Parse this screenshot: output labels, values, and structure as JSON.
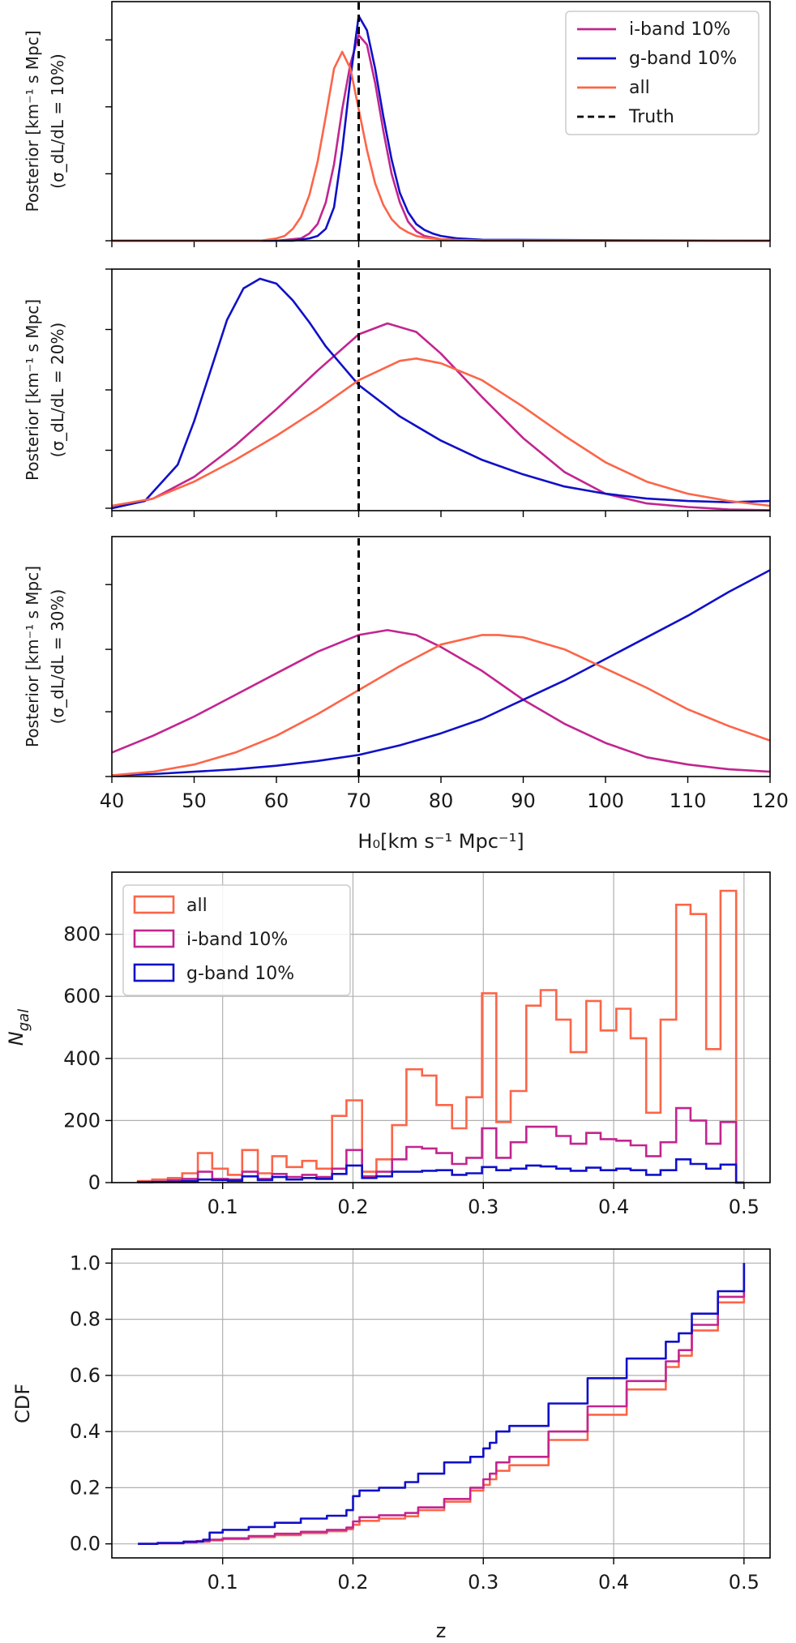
{
  "colors": {
    "all": "#fc6548",
    "iband": "#c2258f",
    "gband": "#1010c8",
    "truth": "#000000",
    "grid": "#b0b0b0"
  },
  "chart_data": [
    {
      "type": "line",
      "id": "post10",
      "ylabel_line1": "Posterior [km⁻¹ s Mpc]",
      "ylabel_line2": "(σ_dL/dL = 10%)",
      "xlim": [
        40,
        120
      ],
      "ylim": [
        0,
        1.0
      ],
      "truth": 70,
      "legend": [
        {
          "label": "i-band 10%",
          "key": "iband",
          "style": "solid"
        },
        {
          "label": "g-band 10%",
          "key": "gband",
          "style": "solid"
        },
        {
          "label": "all",
          "key": "all",
          "style": "solid"
        },
        {
          "label": "Truth",
          "key": "truth",
          "style": "dashed"
        }
      ],
      "series": [
        {
          "name": "i-band 10%",
          "key": "iband",
          "x": [
            40,
            60,
            63,
            64,
            65,
            66,
            67,
            68,
            69,
            70,
            71,
            72,
            73,
            74,
            75,
            76,
            77,
            78,
            80,
            85,
            120
          ],
          "y": [
            0,
            0,
            0.01,
            0.03,
            0.07,
            0.16,
            0.32,
            0.55,
            0.74,
            0.86,
            0.82,
            0.66,
            0.46,
            0.28,
            0.16,
            0.08,
            0.04,
            0.02,
            0.006,
            0,
            0
          ]
        },
        {
          "name": "g-band 10%",
          "key": "gband",
          "x": [
            40,
            62,
            64,
            65,
            66,
            67,
            68,
            69,
            70,
            71,
            72,
            73,
            74,
            75,
            76,
            77,
            78,
            79,
            80,
            82,
            85,
            120
          ],
          "y": [
            0,
            0,
            0.01,
            0.02,
            0.05,
            0.14,
            0.38,
            0.68,
            0.94,
            0.88,
            0.72,
            0.52,
            0.34,
            0.2,
            0.12,
            0.07,
            0.045,
            0.03,
            0.02,
            0.01,
            0.004,
            0
          ]
        },
        {
          "name": "all",
          "key": "all",
          "x": [
            40,
            58,
            60,
            61,
            62,
            63,
            64,
            65,
            66,
            67,
            68,
            69,
            70,
            71,
            72,
            73,
            74,
            75,
            76,
            77,
            78,
            80,
            82,
            85,
            120
          ],
          "y": [
            0,
            0,
            0.01,
            0.02,
            0.05,
            0.1,
            0.19,
            0.33,
            0.52,
            0.72,
            0.79,
            0.72,
            0.55,
            0.38,
            0.24,
            0.15,
            0.09,
            0.055,
            0.035,
            0.02,
            0.013,
            0.006,
            0.003,
            0.001,
            0
          ]
        },
        {
          "name": "Truth",
          "key": "truth",
          "x": [
            70,
            70
          ],
          "y": [
            0,
            1.05
          ]
        }
      ]
    },
    {
      "type": "line",
      "id": "post20",
      "ylabel_line1": "Posterior [km⁻¹ s Mpc]",
      "ylabel_line2": "(σ_dL/dL = 20%)",
      "xlim": [
        40,
        120
      ],
      "ylim": [
        0,
        1.0
      ],
      "truth": 70,
      "series": [
        {
          "name": "i-band 10%",
          "key": "iband",
          "x": [
            40,
            45,
            50,
            55,
            60,
            65,
            70,
            73.5,
            77,
            80,
            85,
            90,
            95,
            100,
            105,
            110,
            115,
            120
          ],
          "y": [
            0.01,
            0.05,
            0.14,
            0.27,
            0.42,
            0.58,
            0.73,
            0.775,
            0.74,
            0.65,
            0.47,
            0.3,
            0.16,
            0.07,
            0.03,
            0.015,
            0.005,
            0.002
          ]
        },
        {
          "name": "g-band 10%",
          "key": "gband",
          "x": [
            40,
            44,
            48,
            50,
            52,
            54,
            56,
            58,
            60,
            62,
            64,
            66,
            68,
            70,
            75,
            80,
            85,
            90,
            95,
            100,
            105,
            110,
            115,
            120
          ],
          "y": [
            0.01,
            0.04,
            0.19,
            0.37,
            0.58,
            0.79,
            0.92,
            0.96,
            0.94,
            0.87,
            0.78,
            0.68,
            0.6,
            0.52,
            0.39,
            0.29,
            0.21,
            0.15,
            0.1,
            0.07,
            0.05,
            0.04,
            0.035,
            0.04
          ]
        },
        {
          "name": "all",
          "key": "all",
          "x": [
            40,
            45,
            50,
            55,
            60,
            65,
            70,
            75,
            77,
            80,
            85,
            90,
            95,
            100,
            105,
            110,
            115,
            120
          ],
          "y": [
            0.02,
            0.05,
            0.12,
            0.21,
            0.31,
            0.42,
            0.54,
            0.62,
            0.63,
            0.61,
            0.54,
            0.43,
            0.31,
            0.2,
            0.12,
            0.07,
            0.04,
            0.02
          ]
        },
        {
          "name": "Truth",
          "key": "truth",
          "x": [
            70,
            70
          ],
          "y": [
            0,
            1.05
          ]
        }
      ]
    },
    {
      "type": "line",
      "id": "post30",
      "ylabel_line1": "Posterior [km⁻¹ s Mpc]",
      "ylabel_line2": "(σ_dL/dL = 30%)",
      "xlim": [
        40,
        120
      ],
      "ylim": [
        0,
        1.0
      ],
      "truth": 70,
      "xlabel": "H₀[km s⁻¹ Mpc⁻¹]",
      "xticks": [
        40,
        50,
        60,
        70,
        80,
        90,
        100,
        110,
        120
      ],
      "series": [
        {
          "name": "i-band 10%",
          "key": "iband",
          "x": [
            40,
            45,
            50,
            55,
            60,
            65,
            70,
            73.5,
            77,
            80,
            85,
            90,
            95,
            100,
            105,
            110,
            115,
            120
          ],
          "y": [
            0.1,
            0.17,
            0.25,
            0.34,
            0.43,
            0.52,
            0.59,
            0.61,
            0.59,
            0.54,
            0.44,
            0.32,
            0.22,
            0.14,
            0.08,
            0.05,
            0.03,
            0.02
          ]
        },
        {
          "name": "g-band 10%",
          "key": "gband",
          "x": [
            40,
            45,
            50,
            55,
            60,
            65,
            70,
            75,
            80,
            85,
            90,
            95,
            100,
            105,
            110,
            115,
            120
          ],
          "y": [
            0.005,
            0.01,
            0.02,
            0.03,
            0.045,
            0.065,
            0.09,
            0.13,
            0.18,
            0.24,
            0.32,
            0.4,
            0.49,
            0.58,
            0.67,
            0.77,
            0.86
          ]
        },
        {
          "name": "all",
          "key": "all",
          "x": [
            40,
            45,
            50,
            55,
            60,
            65,
            70,
            75,
            80,
            85,
            87,
            90,
            95,
            100,
            105,
            110,
            115,
            120
          ],
          "y": [
            0.005,
            0.02,
            0.05,
            0.1,
            0.17,
            0.26,
            0.36,
            0.46,
            0.55,
            0.59,
            0.59,
            0.58,
            0.53,
            0.45,
            0.37,
            0.28,
            0.21,
            0.15
          ]
        },
        {
          "name": "Truth",
          "key": "truth",
          "x": [
            70,
            70
          ],
          "y": [
            0,
            1.0
          ]
        }
      ]
    },
    {
      "type": "histogram",
      "id": "hist",
      "ylabel": "N_gal",
      "xlim": [
        0.015,
        0.52
      ],
      "ylim": [
        0,
        1000
      ],
      "yticks": [
        0,
        200,
        400,
        600,
        800
      ],
      "xticks": [
        0.1,
        0.2,
        0.3,
        0.4,
        0.5
      ],
      "legend": [
        {
          "label": "all",
          "key": "all"
        },
        {
          "label": "i-band 10%",
          "key": "iband"
        },
        {
          "label": "g-band 10%",
          "key": "gband"
        }
      ],
      "bin_edges": [
        0.035,
        0.046,
        0.058,
        0.069,
        0.081,
        0.092,
        0.104,
        0.115,
        0.127,
        0.138,
        0.149,
        0.161,
        0.172,
        0.184,
        0.195,
        0.207,
        0.218,
        0.23,
        0.241,
        0.253,
        0.264,
        0.276,
        0.287,
        0.299,
        0.31,
        0.321,
        0.333,
        0.344,
        0.356,
        0.367,
        0.379,
        0.39,
        0.402,
        0.413,
        0.425,
        0.436,
        0.448,
        0.459,
        0.471,
        0.482,
        0.494,
        0.5
      ],
      "series": [
        {
          "name": "all",
          "key": "all",
          "values": [
            5,
            10,
            15,
            30,
            95,
            45,
            25,
            105,
            30,
            85,
            50,
            70,
            45,
            215,
            265,
            35,
            75,
            185,
            365,
            345,
            250,
            175,
            275,
            610,
            195,
            295,
            570,
            620,
            525,
            420,
            585,
            490,
            560,
            465,
            225,
            525,
            895,
            865,
            430,
            940,
            0
          ]
        },
        {
          "name": "i-band 10%",
          "key": "iband",
          "values": [
            2,
            3,
            8,
            12,
            35,
            12,
            10,
            35,
            12,
            28,
            18,
            25,
            18,
            45,
            105,
            20,
            35,
            75,
            115,
            110,
            95,
            60,
            80,
            175,
            80,
            130,
            180,
            180,
            150,
            125,
            160,
            140,
            135,
            120,
            85,
            130,
            240,
            200,
            125,
            195,
            0
          ]
        },
        {
          "name": "g-band 10%",
          "key": "gband",
          "values": [
            1,
            2,
            3,
            5,
            10,
            8,
            6,
            20,
            8,
            18,
            10,
            15,
            12,
            28,
            55,
            15,
            20,
            35,
            35,
            38,
            40,
            25,
            30,
            50,
            40,
            45,
            55,
            52,
            45,
            38,
            48,
            40,
            45,
            40,
            25,
            40,
            75,
            60,
            45,
            58,
            0
          ]
        }
      ]
    },
    {
      "type": "line",
      "id": "cdf",
      "ylabel": "CDF",
      "xlabel": "z",
      "xlim": [
        0.015,
        0.52
      ],
      "ylim": [
        -0.05,
        1.05
      ],
      "yticks": [
        0.0,
        0.2,
        0.4,
        0.6,
        0.8,
        1.0
      ],
      "ytick_labels": [
        "0.0",
        "0.2",
        "0.4",
        "0.6",
        "0.8",
        "1.0"
      ],
      "xticks": [
        0.1,
        0.2,
        0.3,
        0.4,
        0.5
      ],
      "series": [
        {
          "name": "all",
          "key": "all",
          "x": [
            0.035,
            0.05,
            0.07,
            0.08,
            0.09,
            0.1,
            0.12,
            0.14,
            0.16,
            0.18,
            0.195,
            0.2,
            0.205,
            0.22,
            0.24,
            0.25,
            0.27,
            0.29,
            0.3,
            0.305,
            0.31,
            0.32,
            0.35,
            0.38,
            0.41,
            0.44,
            0.45,
            0.46,
            0.48,
            0.5
          ],
          "y": [
            0,
            0.002,
            0.005,
            0.008,
            0.012,
            0.017,
            0.024,
            0.031,
            0.038,
            0.045,
            0.052,
            0.068,
            0.082,
            0.09,
            0.098,
            0.12,
            0.15,
            0.19,
            0.21,
            0.23,
            0.26,
            0.28,
            0.37,
            0.46,
            0.55,
            0.63,
            0.67,
            0.76,
            0.86,
            1.0
          ]
        },
        {
          "name": "i-band 10%",
          "key": "iband",
          "x": [
            0.035,
            0.05,
            0.07,
            0.08,
            0.09,
            0.1,
            0.12,
            0.14,
            0.16,
            0.18,
            0.195,
            0.2,
            0.205,
            0.22,
            0.24,
            0.25,
            0.27,
            0.29,
            0.3,
            0.305,
            0.31,
            0.32,
            0.35,
            0.38,
            0.41,
            0.44,
            0.45,
            0.46,
            0.48,
            0.5
          ],
          "y": [
            0,
            0.002,
            0.006,
            0.01,
            0.015,
            0.02,
            0.028,
            0.036,
            0.043,
            0.05,
            0.058,
            0.08,
            0.095,
            0.102,
            0.11,
            0.13,
            0.16,
            0.2,
            0.23,
            0.25,
            0.29,
            0.31,
            0.4,
            0.49,
            0.58,
            0.65,
            0.69,
            0.78,
            0.88,
            1.0
          ]
        },
        {
          "name": "g-band 10%",
          "key": "gband",
          "x": [
            0.035,
            0.05,
            0.07,
            0.085,
            0.09,
            0.1,
            0.12,
            0.14,
            0.16,
            0.18,
            0.195,
            0.2,
            0.205,
            0.22,
            0.24,
            0.25,
            0.27,
            0.29,
            0.3,
            0.305,
            0.31,
            0.32,
            0.35,
            0.38,
            0.41,
            0.44,
            0.45,
            0.46,
            0.48,
            0.5
          ],
          "y": [
            0,
            0.003,
            0.008,
            0.015,
            0.04,
            0.05,
            0.06,
            0.075,
            0.09,
            0.1,
            0.12,
            0.17,
            0.19,
            0.2,
            0.22,
            0.25,
            0.29,
            0.31,
            0.34,
            0.36,
            0.4,
            0.42,
            0.5,
            0.59,
            0.66,
            0.72,
            0.75,
            0.82,
            0.9,
            1.0
          ]
        }
      ]
    }
  ]
}
